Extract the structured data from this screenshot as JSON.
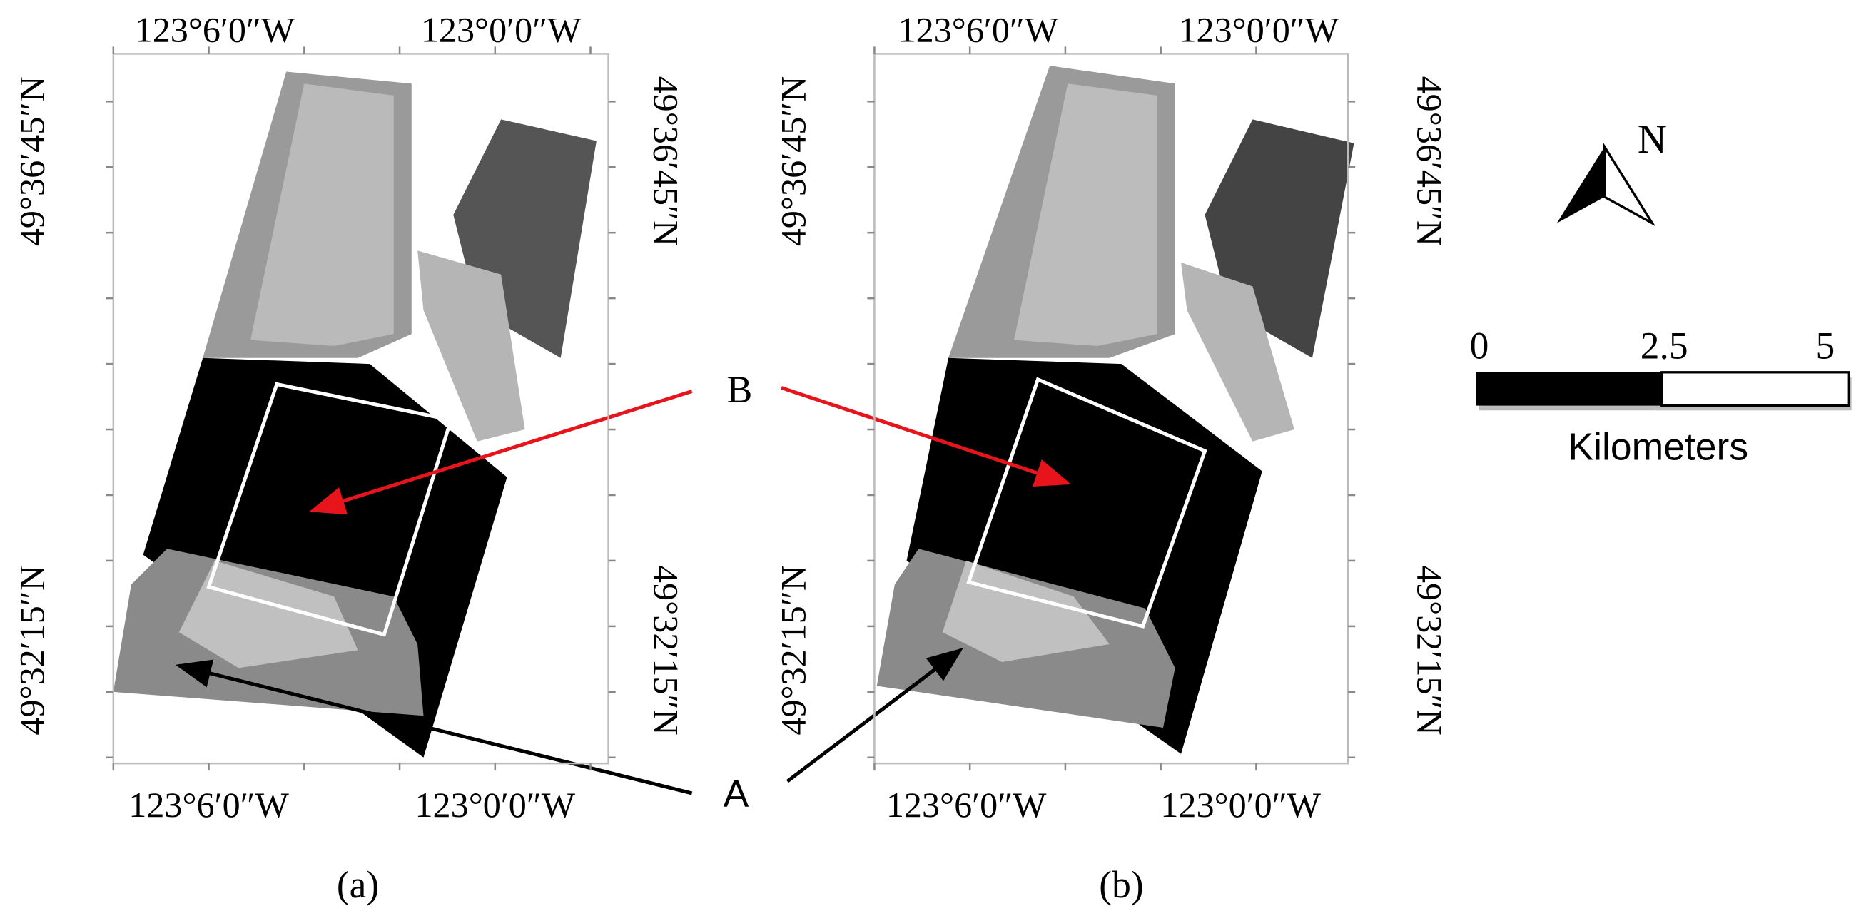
{
  "panels": [
    {
      "caption": "(a)",
      "top_labels": [
        "123°6′0″W",
        "123°0′0″W"
      ],
      "bottom_labels": [
        "123°6′0″W",
        "123°0′0″W"
      ],
      "left_labels": [
        "49°36′45″N",
        "49°32′15″N"
      ],
      "right_labels": [
        "49°36′45″N",
        "49°32′15″N"
      ]
    },
    {
      "caption": "(b)",
      "top_labels": [
        "123°6′0″W",
        "123°0′0″W"
      ],
      "bottom_labels": [
        "123°6′0″W",
        "123°0′0″W"
      ],
      "left_labels": [
        "49°36′45″N",
        "49°32′15″N"
      ],
      "right_labels": [
        "49°36′45″N",
        "49°32′15″N"
      ]
    }
  ],
  "annotations": {
    "a": "A",
    "b": "B"
  },
  "north": "N",
  "scale_bar": {
    "labels": [
      "0",
      "2.5",
      "5"
    ],
    "unit": "Kilometers"
  }
}
